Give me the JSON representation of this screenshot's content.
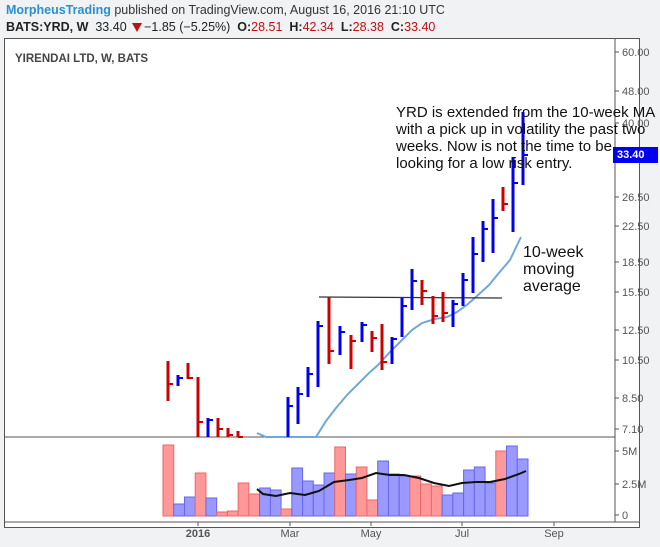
{
  "header": {
    "author": "MorpheusTrading",
    "published_text": " published on TradingView.com, August 16, 2016 21:10 UTC",
    "symbol": "BATS:YRD, W",
    "last": "33.40",
    "change": "−1.85 (−5.25%)",
    "o_label": "O:",
    "o": "28.51",
    "h_label": "H:",
    "h": "42.34",
    "l_label": "L:",
    "l": "28.38",
    "c_label": "C:",
    "c": "33.40"
  },
  "legend": "YIRENDAI LTD, W, BATS",
  "price_badge": "33.40",
  "annotations": {
    "main_lines": [
      "YRD is extended from the 10-week MA",
      "with a pick up in volatility the past two",
      "weeks.  Now is not the time to be",
      "looking for a low risk entry."
    ],
    "ma_label_lines": [
      "10-week",
      "moving",
      "average"
    ]
  },
  "colors": {
    "up": "#0000f0",
    "down": "#cc0000",
    "ma": "#6fa8dc",
    "vol_up": "#9999ff",
    "vol_down": "#ff9999",
    "vol_ma": "#000000",
    "accent": "#2a8fce"
  },
  "chart_data": {
    "type": "ohlc",
    "title": "YIRENDAI LTD, W, BATS",
    "price_axis": {
      "scale": "log",
      "ticks": [
        "60.00",
        "48.00",
        "40.00",
        "26.50",
        "22.50",
        "18.50",
        "15.50",
        "12.50",
        "10.50",
        "8.50",
        "7.10"
      ]
    },
    "volume_axis": {
      "ticks": [
        "5M",
        "2.5M",
        "0"
      ]
    },
    "x_ticks": [
      "2016",
      "Mar",
      "May",
      "Jul",
      "Sep"
    ],
    "resistance_line": 15.0,
    "last_bar": {
      "open": 28.51,
      "high": 42.34,
      "low": 28.38,
      "close": 33.4
    }
  }
}
